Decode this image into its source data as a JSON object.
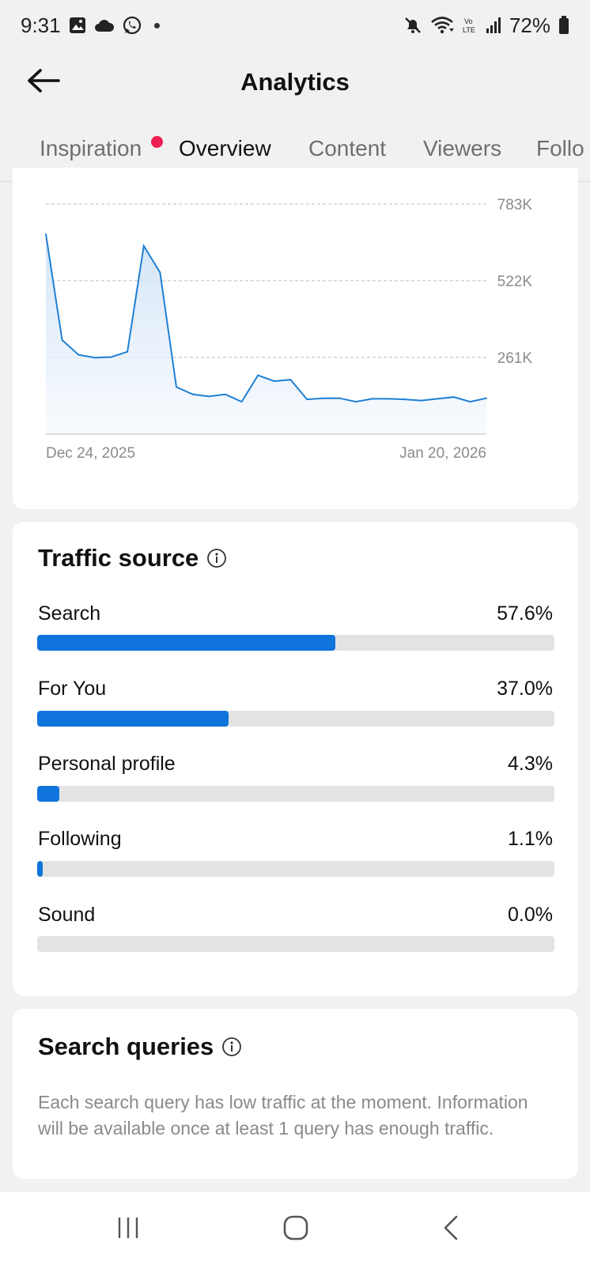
{
  "status_bar": {
    "time": "9:31",
    "battery": "72%",
    "left_icons": [
      "gallery-icon",
      "cloud-icon",
      "whatsapp-icon",
      "dot-icon"
    ],
    "right_icons": [
      "mute-icon",
      "wifi-icon",
      "volte-icon",
      "signal-icon",
      "battery-icon"
    ]
  },
  "header": {
    "title": "Analytics",
    "back_icon": "arrow-left-icon"
  },
  "tabs": [
    {
      "label": "Inspiration",
      "active": false,
      "has_notification": true
    },
    {
      "label": "Overview",
      "active": true,
      "has_notification": false
    },
    {
      "label": "Content",
      "active": false,
      "has_notification": false
    },
    {
      "label": "Viewers",
      "active": false,
      "has_notification": false
    },
    {
      "label": "Follo",
      "active": false,
      "has_notification": false
    }
  ],
  "chart_data": {
    "type": "area",
    "x_start_label": "Dec 24, 2025",
    "x_end_label": "Jan 20, 2026",
    "y_ticks": [
      "783K",
      "522K",
      "261K"
    ],
    "y_tick_values": [
      783000,
      522000,
      261000
    ],
    "ylim": [
      0,
      783000
    ],
    "values": [
      680000,
      320000,
      270000,
      260000,
      262000,
      280000,
      640000,
      550000,
      160000,
      135000,
      128000,
      135000,
      110000,
      200000,
      180000,
      185000,
      118000,
      122000,
      122000,
      110000,
      120000,
      120000,
      118000,
      114000,
      120000,
      126000,
      110000,
      122000
    ],
    "colors": {
      "line": "#1f7fd3",
      "fill": "#dbe9f8",
      "grid": "#bdbdbd"
    }
  },
  "traffic_source": {
    "title": "Traffic source",
    "info_icon": "info-icon",
    "rows": [
      {
        "label": "Search",
        "value": "57.6%",
        "fraction": 0.576
      },
      {
        "label": "For You",
        "value": "37.0%",
        "fraction": 0.37
      },
      {
        "label": "Personal profile",
        "value": "4.3%",
        "fraction": 0.043
      },
      {
        "label": "Following",
        "value": "1.1%",
        "fraction": 0.011
      },
      {
        "label": "Sound",
        "value": "0.0%",
        "fraction": 0.0
      }
    ],
    "bar_color": "#0f74db"
  },
  "search_queries": {
    "title": "Search queries",
    "info_icon": "info-icon",
    "description": "Each search query has low traffic at the moment. Information will be available once at least 1 query has enough traffic."
  },
  "nav_bar": {
    "buttons": [
      "recents-icon",
      "home-icon",
      "back-icon"
    ]
  }
}
